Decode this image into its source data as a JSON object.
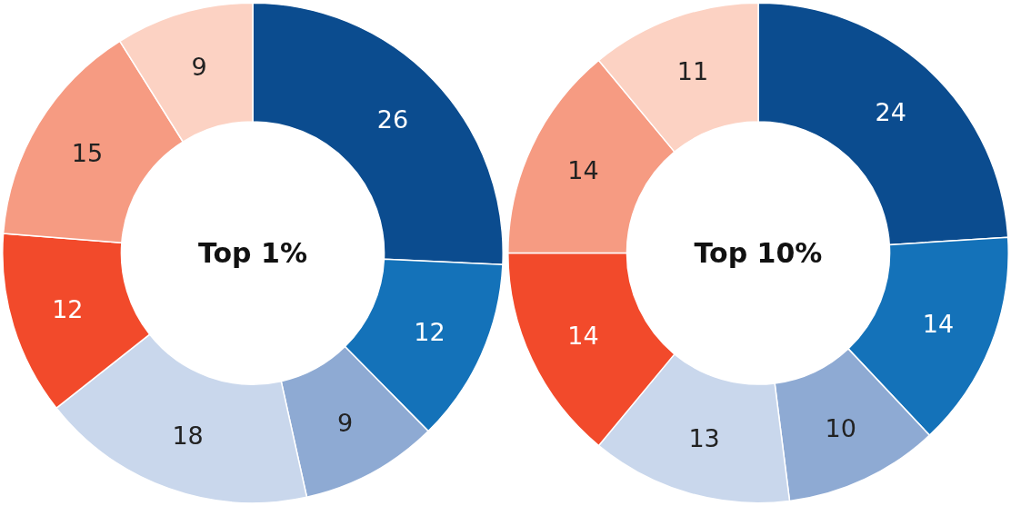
{
  "chart_data": [
    {
      "type": "donut",
      "title": "Top 1%",
      "categories": [
        null,
        null,
        null,
        null,
        null,
        null,
        null
      ],
      "values": [
        26,
        12,
        9,
        18,
        12,
        15,
        9
      ],
      "colors": [
        "#0b4c8f",
        "#1472b9",
        "#8eaad3",
        "#c9d7ec",
        "#f24a2b",
        "#f69b82",
        "#fcd2c3"
      ],
      "data_labels": true
    },
    {
      "type": "donut",
      "title": "Top 10%",
      "categories": [
        null,
        null,
        null,
        null,
        null,
        null,
        null
      ],
      "values": [
        24,
        14,
        10,
        13,
        14,
        14,
        11
      ],
      "colors": [
        "#0b4c8f",
        "#1472b9",
        "#8eaad3",
        "#c9d7ec",
        "#f24a2b",
        "#f69b82",
        "#fcd2c3"
      ],
      "data_labels": true
    }
  ]
}
